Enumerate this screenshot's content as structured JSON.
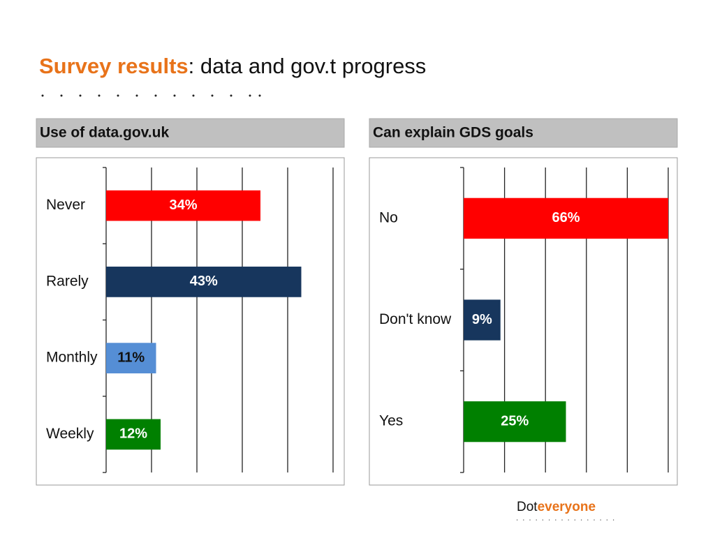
{
  "header": {
    "title_highlight": "Survey results",
    "title_rest": ": data and gov.t progress"
  },
  "footer": {
    "brand_dot": "Dot",
    "brand_everyone": "everyone"
  },
  "chart_data": [
    {
      "type": "bar",
      "orientation": "horizontal",
      "title": "Use of data.gov.uk",
      "categories": [
        "Never",
        "Rarely",
        "Monthly",
        "Weekly"
      ],
      "values": [
        34,
        43,
        11,
        12
      ],
      "value_labels": [
        "34%",
        "43%",
        "11%",
        "12%"
      ],
      "colors": [
        "#ff0000",
        "#17365d",
        "#558ed5",
        "#008000"
      ],
      "xlim": [
        0,
        50
      ],
      "xticks": [
        0,
        10,
        20,
        30,
        40,
        50
      ],
      "grid": true
    },
    {
      "type": "bar",
      "orientation": "horizontal",
      "title": "Can explain GDS goals",
      "categories": [
        "No",
        "Don't know",
        "Yes"
      ],
      "values": [
        66,
        9,
        25
      ],
      "value_labels": [
        "66%",
        "9%",
        "25%"
      ],
      "colors": [
        "#ff0000",
        "#17365d",
        "#008000"
      ],
      "xlim": [
        0,
        50
      ],
      "xticks": [
        0,
        10,
        20,
        30,
        40,
        50
      ],
      "grid": true
    }
  ]
}
